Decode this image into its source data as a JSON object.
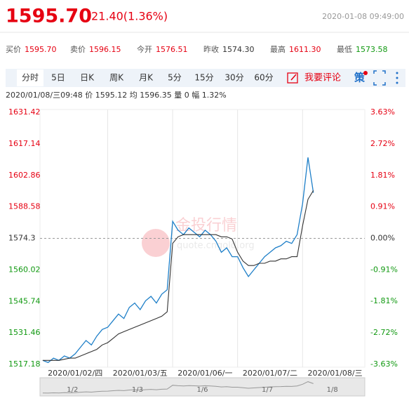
{
  "header": {
    "price": "1595.70",
    "change": "21.40(1.36%)",
    "datetime": "2020-01-08 09:49:00"
  },
  "quotes": [
    {
      "label": "买价",
      "value": "1595.70",
      "color": "#e60012"
    },
    {
      "label": "卖价",
      "value": "1596.15",
      "color": "#e60012"
    },
    {
      "label": "今开",
      "value": "1576.51",
      "color": "#e60012"
    },
    {
      "label": "昨收",
      "value": "1574.30",
      "color": "#333333"
    },
    {
      "label": "最高",
      "value": "1611.30",
      "color": "#e60012"
    },
    {
      "label": "最低",
      "value": "1573.58",
      "color": "#119911"
    }
  ],
  "tabs": [
    "分时",
    "5日",
    "日K",
    "周K",
    "月K",
    "5分",
    "15分",
    "30分",
    "60分"
  ],
  "comment": "我要评论",
  "strategy": "策",
  "info": "2020/01/08/三09:48 价 1595.12 均 1596.35 量 0 幅 1.32%",
  "watermark": "金投行情",
  "watermark_url": "quote.cngold.org",
  "navigator": [
    "1/2",
    "1/3",
    "1/6",
    "1/7",
    "1/8"
  ],
  "chart_data": {
    "type": "line",
    "categories": [
      null,
      null,
      null,
      null,
      null,
      null,
      "2020/01/02/四",
      null,
      null,
      null,
      null,
      null,
      null,
      null,
      null,
      null,
      null,
      null,
      "2020/01/03/五",
      null,
      null,
      null,
      null,
      null,
      null,
      null,
      null,
      null,
      null,
      null,
      "2020/01/06/一",
      null,
      null,
      null,
      null,
      null,
      null,
      null,
      null,
      null,
      null,
      null,
      "2020/01/07/二",
      null,
      null,
      null,
      null,
      null,
      null,
      null,
      null,
      null,
      null,
      null,
      "2020/01/08/三",
      null,
      null,
      null,
      null,
      null
    ],
    "series": [
      {
        "name": "价",
        "color": "#1e7fc8",
        "values": [
          1519,
          1518,
          1520,
          1519,
          1521,
          1520,
          1522,
          1525,
          1528,
          1526,
          1530,
          1533,
          1534,
          1537,
          1540,
          1538,
          1543,
          1545,
          1542,
          1546,
          1548,
          1545,
          1549,
          1551,
          1582,
          1578,
          1576,
          1579,
          1577,
          1575,
          1578,
          1576,
          1573,
          1568,
          1570,
          1566,
          1566,
          1561,
          1557,
          1560,
          1563,
          1566,
          1568,
          1570,
          1571,
          1573,
          1572,
          1576,
          1590,
          1611,
          1595,
          null,
          null,
          null,
          null,
          null,
          null,
          null,
          null,
          null
        ]
      },
      {
        "name": "均",
        "color": "#333333",
        "values": [
          1519,
          1519,
          1519,
          1519,
          1519.5,
          1520,
          1520,
          1521,
          1522,
          1523,
          1524,
          1526,
          1527,
          1529,
          1531,
          1532,
          1533,
          1534,
          1535,
          1536,
          1537,
          1538,
          1539,
          1541,
          1572,
          1575,
          1576,
          1576,
          1576,
          1576,
          1576,
          1576,
          1576,
          1575,
          1575,
          1574,
          1568,
          1564,
          1562,
          1562,
          1563,
          1563,
          1564,
          1564,
          1565,
          1565,
          1566,
          1566,
          1580,
          1592,
          1596,
          null,
          null,
          null,
          null,
          null,
          null,
          null,
          null,
          null
        ]
      }
    ],
    "ylim": [
      1517.18,
      1631.42
    ],
    "yticks": [
      1517.18,
      1531.46,
      1545.74,
      1560.02,
      1574.3,
      1588.58,
      1602.86,
      1617.14,
      1631.42
    ],
    "y2lim": [
      -3.63,
      3.63
    ],
    "y2ticks": [
      {
        "value": -3.63,
        "label": "-3.63%"
      },
      {
        "value": -2.72,
        "label": "-2.72%"
      },
      {
        "value": -1.81,
        "label": "-1.81%"
      },
      {
        "value": -0.91,
        "label": "-0.91%"
      },
      {
        "value": 0,
        "label": "0.00%"
      },
      {
        "value": 0.91,
        "label": "0.91%"
      },
      {
        "value": 1.81,
        "label": "1.81%"
      },
      {
        "value": 2.72,
        "label": "2.72%"
      },
      {
        "value": 3.63,
        "label": "3.63%"
      }
    ],
    "up_color": "#e60012",
    "down_color": "#119911"
  }
}
